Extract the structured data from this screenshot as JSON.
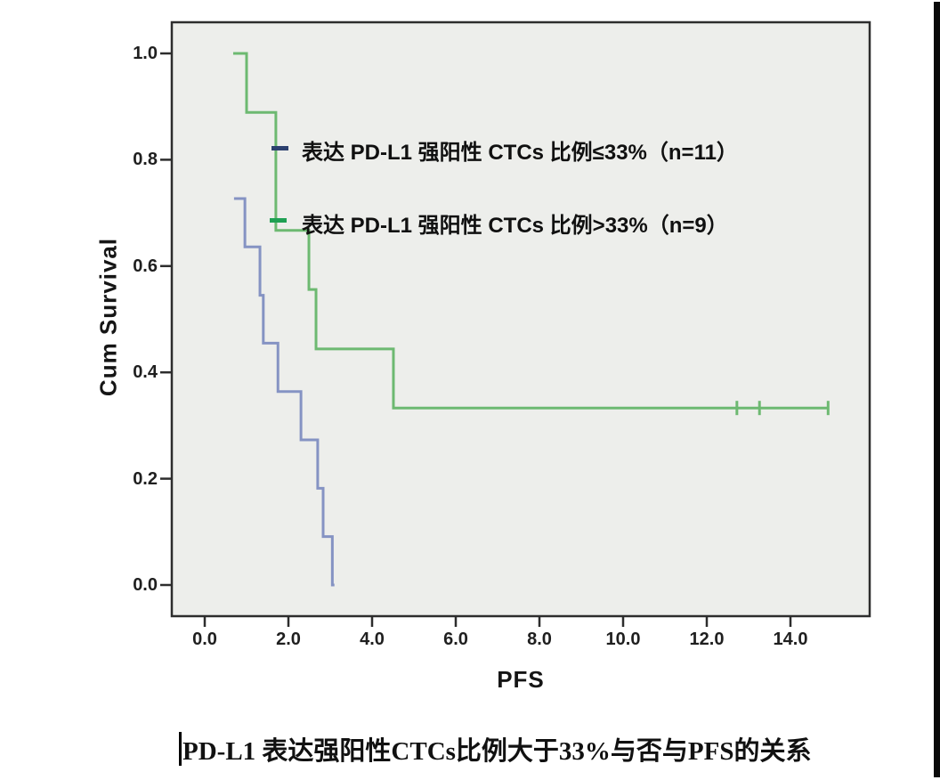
{
  "figure": {
    "background": "#ffffff",
    "plot_background": "#edeeeb",
    "frame_color": "#2d2d2d"
  },
  "chart_data": {
    "type": "line",
    "subtype": "kaplan-meier-step-survival",
    "title": "PD-L1 表达强阳性CTCs比例大于33%与否与PFS的关系",
    "xlabel": "PFS",
    "ylabel": "Cum Survival",
    "xlim": [
      -0.8,
      15.9
    ],
    "ylim": [
      -0.06,
      1.06
    ],
    "grid": false,
    "legend_position": "inside-top-left",
    "x_ticks": [
      {
        "v": 0.0,
        "label": "0.0"
      },
      {
        "v": 2.0,
        "label": "2.0"
      },
      {
        "v": 4.0,
        "label": "4.0"
      },
      {
        "v": 6.0,
        "label": "6.0"
      },
      {
        "v": 8.0,
        "label": "8.0"
      },
      {
        "v": 10.0,
        "label": "10.0"
      },
      {
        "v": 12.0,
        "label": "12.0"
      },
      {
        "v": 14.0,
        "label": "14.0"
      }
    ],
    "y_ticks": [
      {
        "v": 1.0,
        "label": "1.0"
      },
      {
        "v": 0.8,
        "label": "0.8"
      },
      {
        "v": 0.6,
        "label": "0.6"
      },
      {
        "v": 0.4,
        "label": "0.4"
      },
      {
        "v": 0.2,
        "label": "0.2"
      },
      {
        "v": 0.0,
        "label": "0.0"
      }
    ],
    "series": [
      {
        "name": "表达 PD-L1 强阳性 CTCs 比例≤33%（n=11）",
        "n": 11,
        "color": "#8593c3",
        "legend_dash_color": "#2c406e",
        "points": [
          [
            0.7,
            0.727
          ],
          [
            0.96,
            0.727
          ],
          [
            0.96,
            0.636
          ],
          [
            1.32,
            0.636
          ],
          [
            1.32,
            0.545
          ],
          [
            1.4,
            0.545
          ],
          [
            1.4,
            0.455
          ],
          [
            1.75,
            0.455
          ],
          [
            1.75,
            0.364
          ],
          [
            2.3,
            0.364
          ],
          [
            2.3,
            0.273
          ],
          [
            2.7,
            0.273
          ],
          [
            2.7,
            0.182
          ],
          [
            2.83,
            0.182
          ],
          [
            2.83,
            0.091
          ],
          [
            3.05,
            0.091
          ],
          [
            3.05,
            0.0
          ],
          [
            3.1,
            0.0
          ]
        ],
        "censored": []
      },
      {
        "name": "表达 PD-L1 强阳性 CTCs 比例>33%（n=9）",
        "n": 9,
        "color": "#6db971",
        "legend_dash_color": "#1fa053",
        "points": [
          [
            0.68,
            1.0
          ],
          [
            1.0,
            1.0
          ],
          [
            1.0,
            0.889
          ],
          [
            1.7,
            0.889
          ],
          [
            1.7,
            0.667
          ],
          [
            2.49,
            0.667
          ],
          [
            2.49,
            0.556
          ],
          [
            2.66,
            0.556
          ],
          [
            2.66,
            0.444
          ],
          [
            4.51,
            0.444
          ],
          [
            4.51,
            0.333
          ],
          [
            14.9,
            0.333
          ]
        ],
        "censored": [
          [
            12.72,
            0.333
          ],
          [
            13.26,
            0.333
          ],
          [
            14.9,
            0.333
          ]
        ]
      }
    ]
  }
}
